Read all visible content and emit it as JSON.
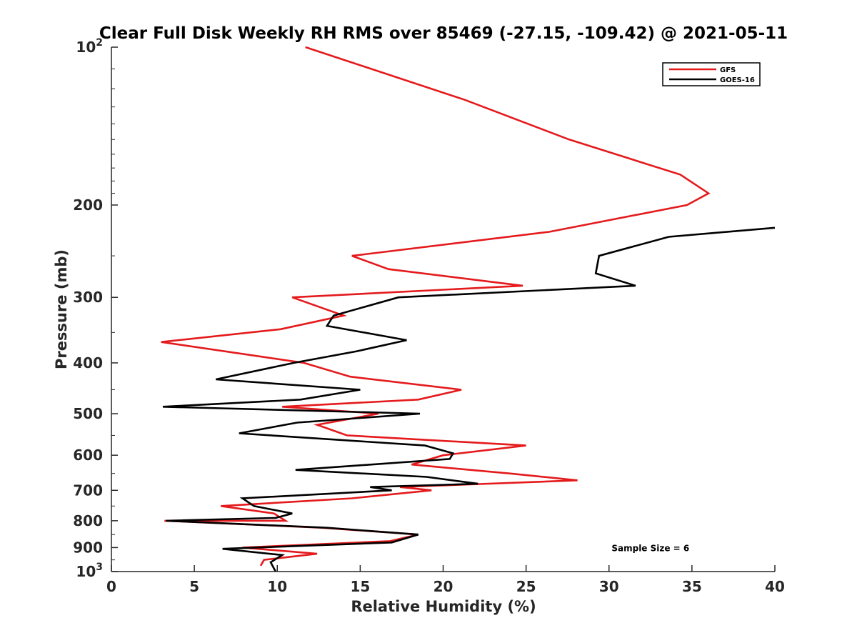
{
  "chart_data": {
    "type": "line",
    "title": "Clear Full Disk Weekly RH RMS over 85469 (-27.15, -109.42) @ 2021-05-11",
    "xlabel": "Relative Humidity (%)",
    "ylabel": "Pressure (mb)",
    "xlim": [
      0,
      40
    ],
    "ylim": [
      100,
      1000
    ],
    "yscale": "log",
    "y_reversed": true,
    "grid": false,
    "legend_placement": "top-right",
    "x_ticks": [
      {
        "value": 0,
        "label": "0"
      },
      {
        "value": 5,
        "label": "5"
      },
      {
        "value": 10,
        "label": "10"
      },
      {
        "value": 15,
        "label": "15"
      },
      {
        "value": 20,
        "label": "20"
      },
      {
        "value": 25,
        "label": "25"
      },
      {
        "value": 30,
        "label": "30"
      },
      {
        "value": 35,
        "label": "35"
      },
      {
        "value": 40,
        "label": "40"
      }
    ],
    "y_ticks": [
      {
        "value": 100,
        "label": "10",
        "sup": "2"
      },
      {
        "value": 200,
        "label": "200",
        "sup": ""
      },
      {
        "value": 300,
        "label": "300",
        "sup": ""
      },
      {
        "value": 400,
        "label": "400",
        "sup": ""
      },
      {
        "value": 500,
        "label": "500",
        "sup": ""
      },
      {
        "value": 600,
        "label": "600",
        "sup": ""
      },
      {
        "value": 700,
        "label": "700",
        "sup": ""
      },
      {
        "value": 800,
        "label": "800",
        "sup": ""
      },
      {
        "value": 900,
        "label": "900",
        "sup": ""
      },
      {
        "value": 1000,
        "label": "10",
        "sup": "3"
      }
    ],
    "series": [
      {
        "name": "GFS",
        "color": "#e41a1c",
        "points": [
          [
            11.7,
            100
          ],
          [
            21.3,
            126
          ],
          [
            27.6,
            150
          ],
          [
            34.3,
            175
          ],
          [
            36.0,
            190
          ],
          [
            34.7,
            200
          ],
          [
            26.4,
            225
          ],
          [
            14.5,
            250
          ],
          [
            16.7,
            265
          ],
          [
            24.8,
            285
          ],
          [
            10.9,
            300
          ],
          [
            14.0,
            325
          ],
          [
            10.2,
            345
          ],
          [
            3.0,
            365
          ],
          [
            11.6,
            400
          ],
          [
            14.4,
            425
          ],
          [
            21.1,
            450
          ],
          [
            18.5,
            470
          ],
          [
            10.3,
            485
          ],
          [
            16.1,
            500
          ],
          [
            12.4,
            525
          ],
          [
            14.2,
            550
          ],
          [
            25.0,
            575
          ],
          [
            20.0,
            600
          ],
          [
            18.1,
            625
          ],
          [
            24.0,
            650
          ],
          [
            28.1,
            670
          ],
          [
            17.4,
            690
          ],
          [
            19.3,
            700
          ],
          [
            14.5,
            725
          ],
          [
            6.6,
            750
          ],
          [
            9.8,
            775
          ],
          [
            10.5,
            800
          ],
          [
            3.2,
            800
          ],
          [
            12.7,
            825
          ],
          [
            18.5,
            850
          ],
          [
            16.8,
            875
          ],
          [
            7.9,
            900
          ],
          [
            12.4,
            925
          ],
          [
            9.2,
            950
          ],
          [
            9.0,
            975
          ]
        ]
      },
      {
        "name": "GOES-16",
        "color": "#000000",
        "points": [
          [
            40.0,
            221
          ],
          [
            33.6,
            230
          ],
          [
            29.4,
            250
          ],
          [
            29.2,
            270
          ],
          [
            31.6,
            285
          ],
          [
            17.3,
            300
          ],
          [
            13.4,
            325
          ],
          [
            13.0,
            340
          ],
          [
            17.8,
            362
          ],
          [
            14.8,
            380
          ],
          [
            11.0,
            400
          ],
          [
            6.3,
            430
          ],
          [
            15.0,
            450
          ],
          [
            11.4,
            470
          ],
          [
            3.1,
            485
          ],
          [
            18.6,
            500
          ],
          [
            11.2,
            520
          ],
          [
            7.7,
            545
          ],
          [
            18.9,
            575
          ],
          [
            20.6,
            595
          ],
          [
            20.4,
            610
          ],
          [
            11.1,
            640
          ],
          [
            19.0,
            660
          ],
          [
            22.1,
            680
          ],
          [
            15.6,
            690
          ],
          [
            16.9,
            700
          ],
          [
            7.9,
            725
          ],
          [
            8.6,
            750
          ],
          [
            10.9,
            775
          ],
          [
            9.9,
            790
          ],
          [
            3.3,
            800
          ],
          [
            13.0,
            825
          ],
          [
            18.5,
            850
          ],
          [
            16.9,
            880
          ],
          [
            6.7,
            905
          ],
          [
            10.3,
            930
          ],
          [
            9.6,
            960
          ],
          [
            9.9,
            1000
          ]
        ]
      }
    ],
    "annotations": [
      {
        "text": "Sample Size = 6",
        "x": 32.5,
        "y": 900
      }
    ]
  }
}
